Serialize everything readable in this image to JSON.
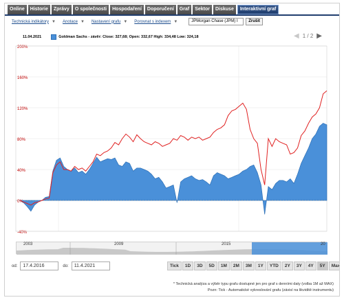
{
  "tabs": [
    "Online",
    "Historie",
    "Zprávy",
    "O společnosti",
    "Hospodaření",
    "Doporučení",
    "Graf",
    "Sektor",
    "Diskuse",
    "Interaktivní graf"
  ],
  "active_tab": "Interaktivní graf",
  "toolbar": {
    "indicators": "Technická indikátory",
    "annotations": "Anotace",
    "settings": "Nastavení grafu",
    "compare": "Porovnat s indexem",
    "compare_value": "JPMorgan Chase (JPM) I",
    "cancel": "Zrušit"
  },
  "legend": {
    "date": "11.04.2021",
    "text": "Goldman Sachs - závěr: Close: 327,68; Open: 332,67 High: 334,48 Low: 324,18"
  },
  "pager": {
    "text": "1 / 2",
    "prev": "◀",
    "next": "▶"
  },
  "colors": {
    "area": "#4a90d9",
    "line": "#e02020",
    "axis": "#c00000"
  },
  "chart_data": {
    "type": "area",
    "ylim": [
      -40,
      200
    ],
    "yticks": [
      "200%",
      "160%",
      "120%",
      "80%",
      "40%",
      "0%",
      "-40%"
    ],
    "series": [
      {
        "name": "Goldman Sachs",
        "values": [
          0,
          -3,
          -8,
          -14,
          -6,
          -2,
          0,
          4,
          5,
          38,
          52,
          55,
          44,
          40,
          38,
          42,
          36,
          38,
          34,
          40,
          48,
          56,
          50,
          52,
          54,
          53,
          55,
          46,
          44,
          50,
          48,
          38,
          42,
          42,
          40,
          38,
          34,
          28,
          30,
          24,
          16,
          18,
          20,
          -3,
          24,
          28,
          30,
          32,
          28,
          26,
          27,
          24,
          20,
          32,
          36,
          34,
          32,
          28,
          30,
          32,
          34,
          38,
          40,
          44,
          46,
          36,
          20,
          -18,
          18,
          14,
          22,
          26,
          26,
          24,
          28,
          22,
          34,
          48,
          58,
          68,
          80,
          86,
          96,
          100,
          98
        ]
      },
      {
        "name": "JPMorgan Chase (JPM)",
        "values": [
          0,
          -2,
          -4,
          -6,
          -3,
          -2,
          0,
          2,
          3,
          36,
          46,
          50,
          40,
          40,
          38,
          44,
          40,
          42,
          38,
          44,
          50,
          60,
          58,
          62,
          64,
          68,
          75,
          72,
          80,
          86,
          82,
          76,
          85,
          80,
          76,
          74,
          72,
          76,
          74,
          70,
          72,
          74,
          80,
          78,
          84,
          82,
          78,
          82,
          80,
          82,
          78,
          80,
          82,
          88,
          92,
          94,
          98,
          110,
          116,
          118,
          122,
          126,
          118,
          92,
          80,
          74,
          40,
          20,
          80,
          70,
          80,
          76,
          74,
          72,
          60,
          62,
          68,
          84,
          90,
          100,
          108,
          112,
          120,
          138,
          142
        ]
      }
    ]
  },
  "navigator": {
    "labels": [
      "2003",
      "2009",
      "2015",
      "20"
    ]
  },
  "range": {
    "from_label": "od:",
    "from": "17.4.2016",
    "to_label": "do:",
    "to": "11.4.2021"
  },
  "periods": [
    "Tick",
    "1D",
    "3D",
    "5D",
    "1M",
    "2M",
    "3M",
    "1Y",
    "YTD",
    "2Y",
    "3Y",
    "4Y",
    "5Y",
    "Max"
  ],
  "footnotes": [
    "* Technická analýza a výběr typu grafu dostupné jen pro graf s denními daty (volba 1M až MAX)",
    "Pozn: Tick - Automatické vykreslování grafu (závisí na likviditě instrumentu)"
  ]
}
